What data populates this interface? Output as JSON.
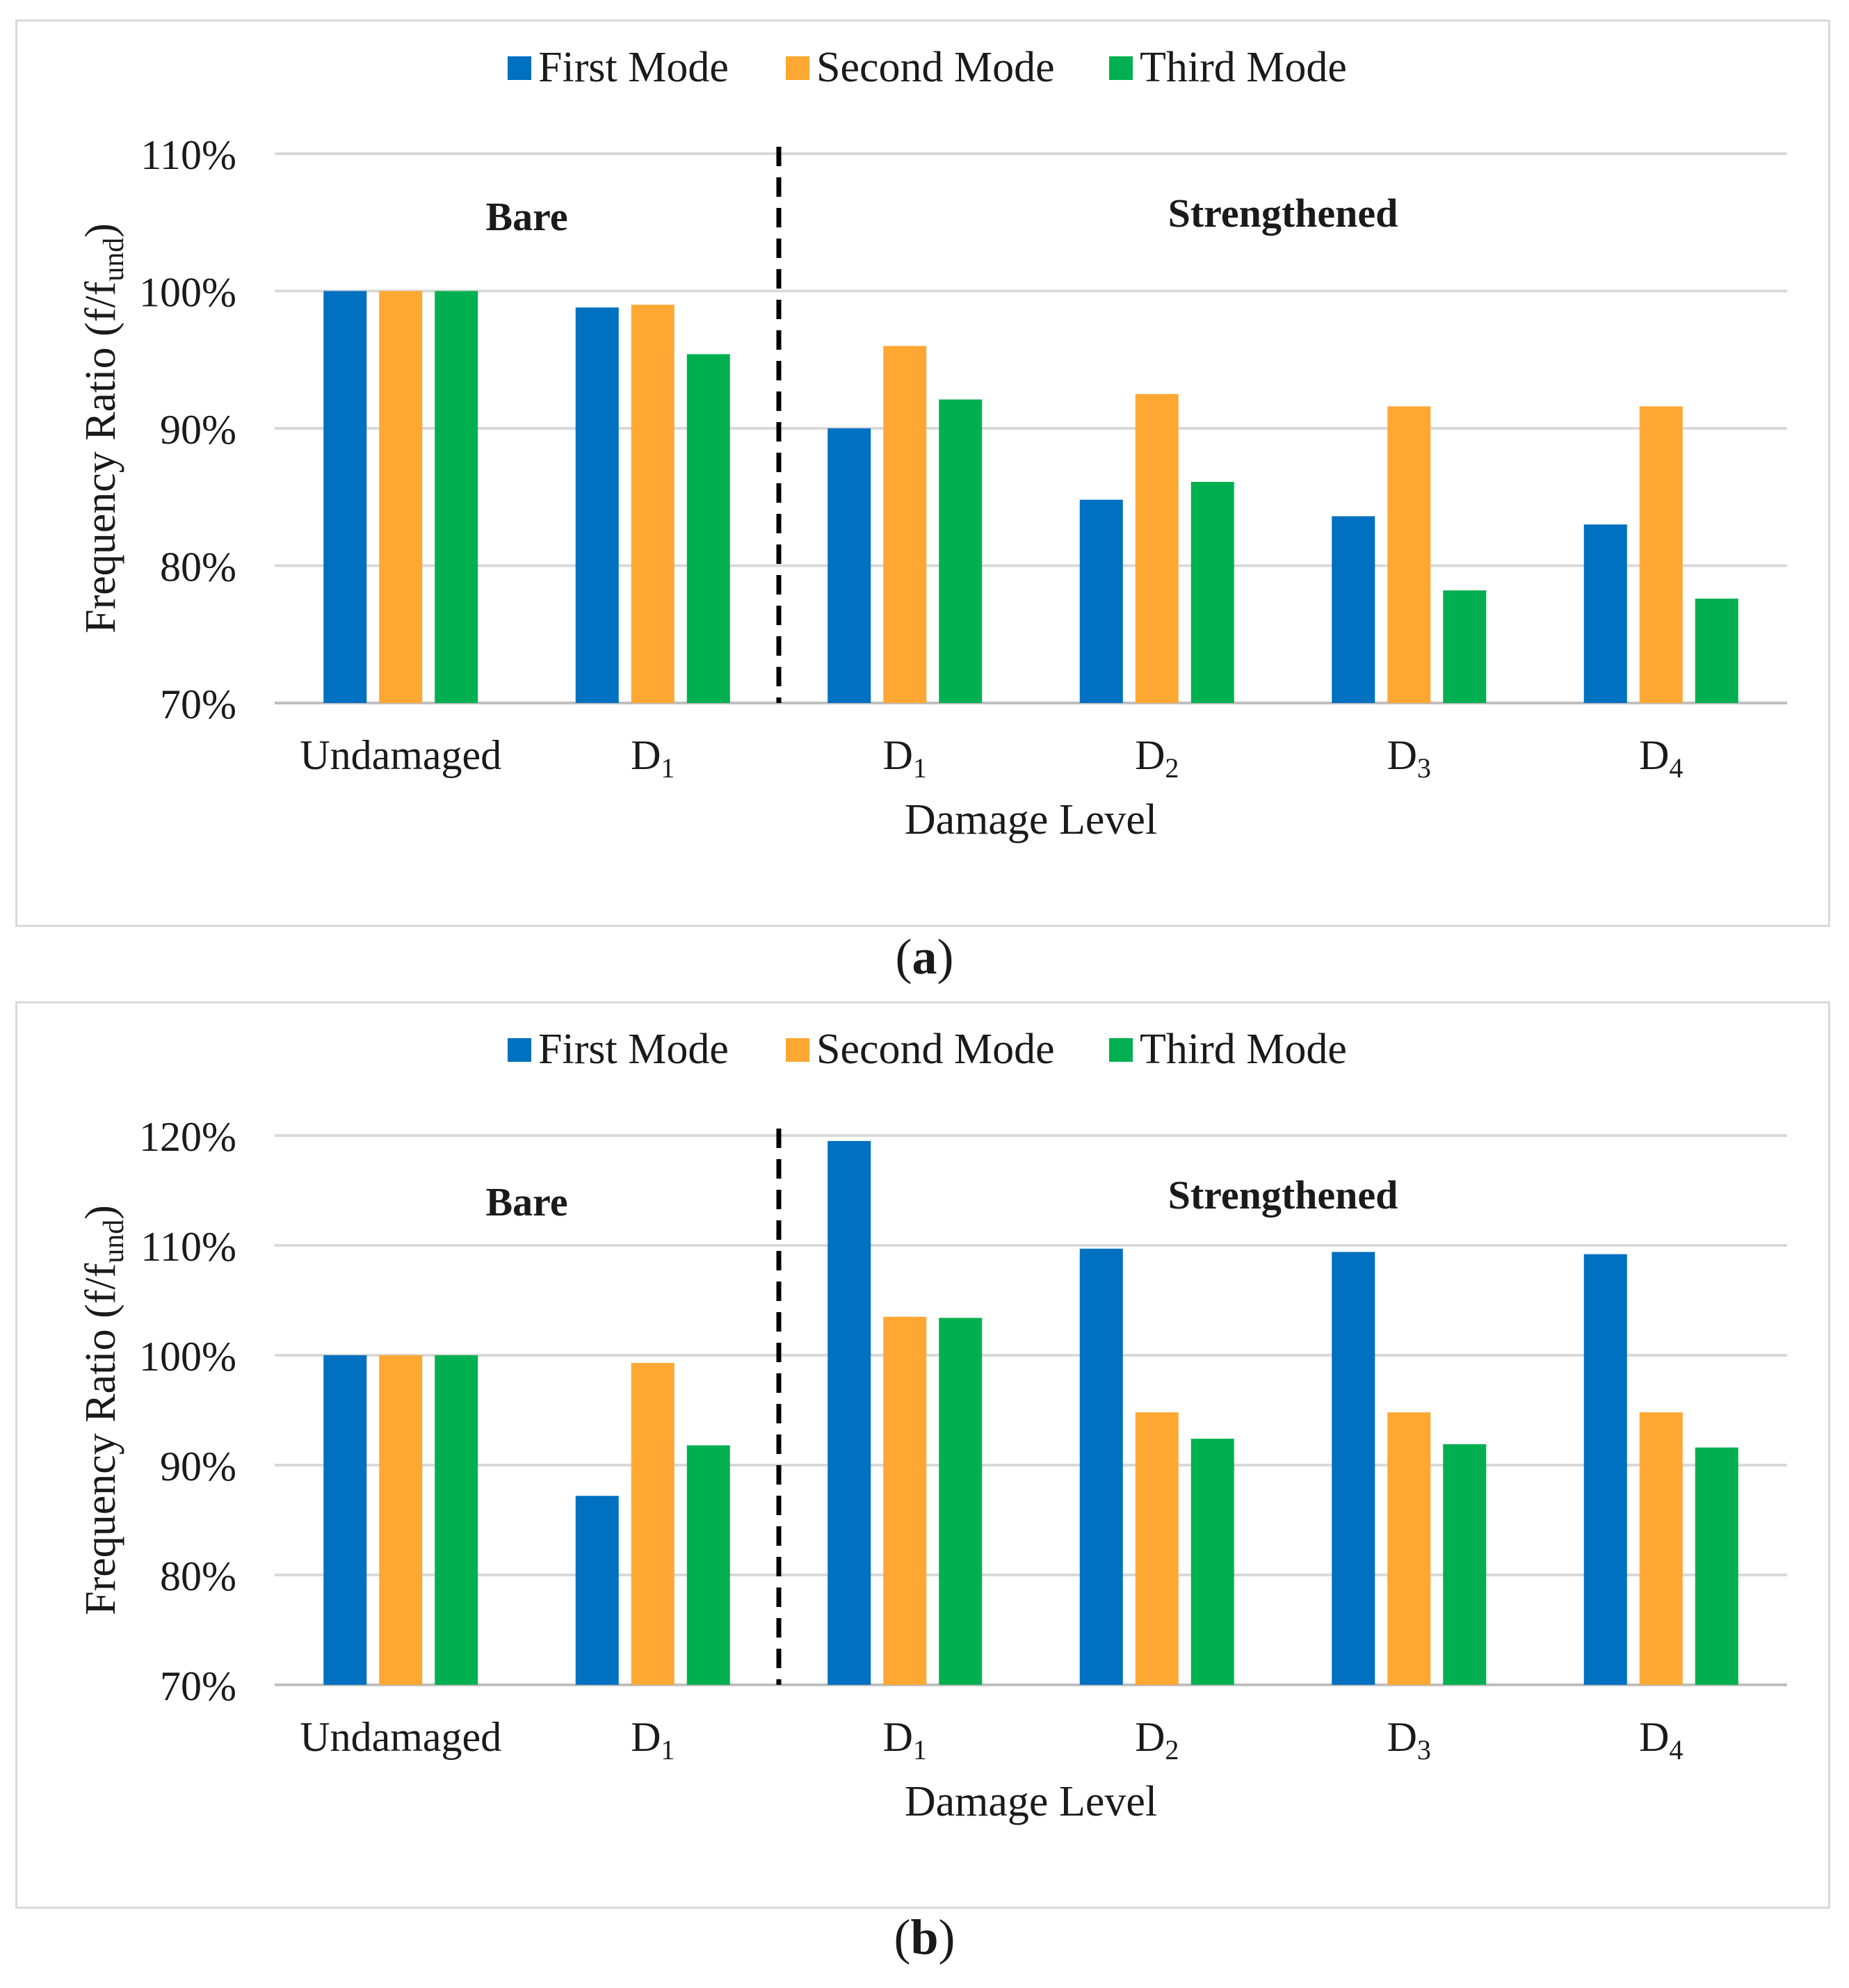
{
  "chart_data": [
    {
      "type": "bar",
      "panel_label": "a",
      "legend": [
        "First Mode",
        "Second Mode",
        "Third Mode"
      ],
      "series_colors": [
        "#0070c0",
        "#ffa733",
        "#00b050"
      ],
      "categories": [
        "Undamaged",
        "D1",
        "D1",
        "D2",
        "D3",
        "D4"
      ],
      "category_base": [
        "Undamaged",
        "D",
        "D",
        "D",
        "D",
        "D"
      ],
      "category_sub": [
        "",
        "1",
        "1",
        "2",
        "3",
        "4"
      ],
      "series": [
        {
          "name": "First Mode",
          "values": [
            100,
            98.8,
            90.0,
            84.8,
            83.6,
            83.0
          ]
        },
        {
          "name": "Second Mode",
          "values": [
            100,
            99.0,
            96.0,
            92.5,
            91.6,
            91.6
          ]
        },
        {
          "name": "Third Mode",
          "values": [
            100,
            95.4,
            92.1,
            86.1,
            78.2,
            77.6
          ]
        }
      ],
      "ylim": [
        70,
        110
      ],
      "yticks": [
        "70%",
        "80%",
        "90%",
        "100%",
        "110%"
      ],
      "ytick_values": [
        70,
        80,
        90,
        100,
        110
      ],
      "ylabel": "Frequency Ratio (f/f",
      "ylabel_sub": "und",
      "ylabel_close": ")",
      "xlabel": "Damage Level",
      "group_labels": [
        "Bare",
        "Strengthened"
      ],
      "divider_after_category_index": 1,
      "grid": true,
      "legend_position": "top-center"
    },
    {
      "type": "bar",
      "panel_label": "b",
      "legend": [
        "First Mode",
        "Second Mode",
        "Third Mode"
      ],
      "series_colors": [
        "#0070c0",
        "#ffa733",
        "#00b050"
      ],
      "categories": [
        "Undamaged",
        "D1",
        "D1",
        "D2",
        "D3",
        "D4"
      ],
      "category_base": [
        "Undamaged",
        "D",
        "D",
        "D",
        "D",
        "D"
      ],
      "category_sub": [
        "",
        "1",
        "1",
        "2",
        "3",
        "4"
      ],
      "series": [
        {
          "name": "First Mode",
          "values": [
            100,
            87.2,
            119.5,
            109.7,
            109.4,
            109.2
          ]
        },
        {
          "name": "Second Mode",
          "values": [
            100,
            99.3,
            103.5,
            94.8,
            94.8,
            94.8
          ]
        },
        {
          "name": "Third Mode",
          "values": [
            100,
            91.8,
            103.4,
            92.4,
            91.9,
            91.6
          ]
        }
      ],
      "ylim": [
        70,
        120
      ],
      "yticks": [
        "70%",
        "80%",
        "90%",
        "100%",
        "110%",
        "120%"
      ],
      "ytick_values": [
        70,
        80,
        90,
        100,
        110,
        120
      ],
      "ylabel": "Frequency Ratio (f/f",
      "ylabel_sub": "und",
      "ylabel_close": ")",
      "xlabel": "Damage Level",
      "group_labels": [
        "Bare",
        "Strengthened"
      ],
      "divider_after_category_index": 1,
      "grid": true,
      "legend_position": "top-center"
    }
  ],
  "captions": {
    "a": "a",
    "b": "b"
  }
}
